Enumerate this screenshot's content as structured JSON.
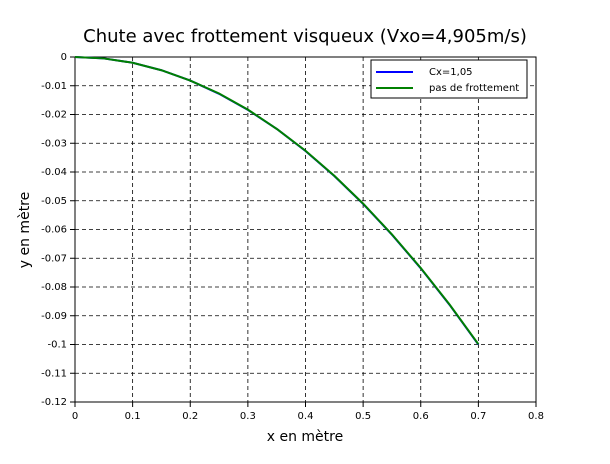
{
  "chart_data": {
    "type": "line",
    "title": "Chute avec frottement visqueux (Vxo=4,905m/s)",
    "x_label": "x en mètre",
    "y_label": "y en mètre",
    "x": [
      0,
      0.05,
      0.1,
      0.15,
      0.2,
      0.25,
      0.3,
      0.35,
      0.4,
      0.45,
      0.5,
      0.55,
      0.6,
      0.65,
      0.7
    ],
    "series": [
      {
        "name": "Cx=1,05",
        "color": "#0000ff",
        "values": [
          0,
          -0.0005,
          -0.002,
          -0.0046,
          -0.0082,
          -0.0128,
          -0.0184,
          -0.025,
          -0.0327,
          -0.0414,
          -0.0511,
          -0.0618,
          -0.0735,
          -0.0862,
          -0.1
        ]
      },
      {
        "name": "pas de frottement",
        "color": "#008000",
        "values": [
          0,
          -0.0005,
          -0.002,
          -0.0046,
          -0.0082,
          -0.0127,
          -0.0183,
          -0.025,
          -0.0326,
          -0.0413,
          -0.051,
          -0.0617,
          -0.0734,
          -0.0861,
          -0.0999
        ]
      }
    ],
    "xlim": [
      0,
      0.8
    ],
    "xticks": [
      0,
      0.1,
      0.2,
      0.3,
      0.4,
      0.5,
      0.6,
      0.7,
      0.8
    ],
    "ylim": [
      -0.12,
      0
    ],
    "yticks": [
      0,
      -0.01,
      -0.02,
      -0.03,
      -0.04,
      -0.05,
      -0.06,
      -0.07,
      -0.08,
      -0.09,
      -0.1,
      -0.11,
      -0.12
    ],
    "grid": true,
    "legend": "upper-right"
  }
}
